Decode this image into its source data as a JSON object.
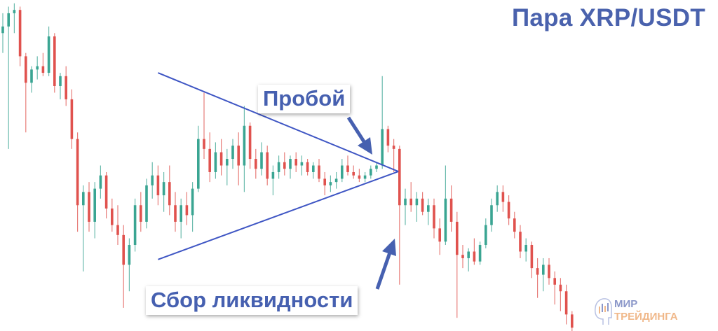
{
  "title": "Пара XRP/USDT",
  "annotations": {
    "breakout": "Пробой",
    "liquidity": "Сбор ликвидности"
  },
  "logo": {
    "line1": "МИР",
    "line2": "ТРЕЙДИНГА"
  },
  "colors": {
    "up": "#3aa592",
    "down": "#e0524e",
    "accent": "#4660b0",
    "trendline": "#3f56c4"
  },
  "chart_data": {
    "type": "candlestick",
    "title": "Пара XRP/USDT",
    "xlabel": "",
    "ylabel": "",
    "axes_visible": false,
    "grid": false,
    "ylim": [
      0,
      100
    ],
    "candle_fields": [
      "open",
      "high",
      "low",
      "close"
    ],
    "candles": [
      [
        90,
        96,
        84,
        92
      ],
      [
        92,
        98,
        55,
        96
      ],
      [
        96,
        99,
        90,
        97
      ],
      [
        97,
        98,
        80,
        83
      ],
      [
        83,
        84,
        60,
        75
      ],
      [
        75,
        80,
        72,
        79
      ],
      [
        79,
        83,
        76,
        80
      ],
      [
        80,
        84,
        77,
        78
      ],
      [
        78,
        92,
        77,
        89
      ],
      [
        89,
        90,
        72,
        74
      ],
      [
        74,
        78,
        70,
        77
      ],
      [
        77,
        80,
        68,
        70
      ],
      [
        70,
        73,
        55,
        58
      ],
      [
        58,
        60,
        30,
        38
      ],
      [
        38,
        44,
        18,
        42
      ],
      [
        42,
        45,
        30,
        33
      ],
      [
        33,
        45,
        28,
        43
      ],
      [
        43,
        50,
        40,
        47
      ],
      [
        47,
        48,
        34,
        37
      ],
      [
        37,
        40,
        30,
        32
      ],
      [
        32,
        38,
        26,
        29
      ],
      [
        29,
        32,
        7,
        20
      ],
      [
        20,
        28,
        12,
        26
      ],
      [
        26,
        40,
        24,
        38
      ],
      [
        38,
        42,
        30,
        33
      ],
      [
        33,
        46,
        31,
        44
      ],
      [
        44,
        51,
        40,
        47
      ],
      [
        47,
        50,
        38,
        41
      ],
      [
        41,
        48,
        36,
        45
      ],
      [
        45,
        50,
        35,
        38
      ],
      [
        38,
        42,
        30,
        33
      ],
      [
        33,
        40,
        28,
        38
      ],
      [
        38,
        42,
        32,
        35
      ],
      [
        35,
        45,
        30,
        43
      ],
      [
        43,
        62,
        42,
        58
      ],
      [
        58,
        72,
        52,
        55
      ],
      [
        55,
        60,
        45,
        48
      ],
      [
        48,
        57,
        46,
        54
      ],
      [
        54,
        58,
        47,
        50
      ],
      [
        50,
        55,
        44,
        52
      ],
      [
        52,
        58,
        49,
        56
      ],
      [
        56,
        60,
        44,
        50
      ],
      [
        50,
        68,
        42,
        62
      ],
      [
        62,
        63,
        49,
        52
      ],
      [
        52,
        55,
        46,
        49
      ],
      [
        49,
        57,
        47,
        54
      ],
      [
        54,
        56,
        44,
        46
      ],
      [
        46,
        50,
        41,
        48
      ],
      [
        48,
        53,
        46,
        51
      ],
      [
        51,
        54,
        47,
        49
      ],
      [
        49,
        53,
        46,
        52
      ],
      [
        52,
        54,
        48,
        50
      ],
      [
        50,
        53,
        47,
        51
      ],
      [
        51,
        52,
        47,
        48
      ],
      [
        48,
        51,
        46,
        50
      ],
      [
        50,
        52,
        45,
        46
      ],
      [
        46,
        48,
        41,
        44
      ],
      [
        44,
        47,
        42,
        45
      ],
      [
        45,
        48,
        43,
        46
      ],
      [
        46,
        52,
        45,
        50
      ],
      [
        50,
        53,
        47,
        48
      ],
      [
        48,
        50,
        46,
        47
      ],
      [
        47,
        49,
        45,
        46
      ],
      [
        46,
        48,
        45,
        47
      ],
      [
        47,
        50,
        46,
        49
      ],
      [
        49,
        51,
        48,
        50
      ],
      [
        50,
        77,
        49,
        61
      ],
      [
        61,
        62,
        54,
        56
      ],
      [
        56,
        58,
        48,
        55
      ],
      [
        55,
        56,
        14,
        38
      ],
      [
        38,
        43,
        32,
        40
      ],
      [
        40,
        45,
        36,
        38
      ],
      [
        38,
        42,
        33,
        40
      ],
      [
        40,
        42,
        35,
        36
      ],
      [
        36,
        40,
        32,
        38
      ],
      [
        38,
        40,
        28,
        31
      ],
      [
        31,
        34,
        23,
        27
      ],
      [
        27,
        50,
        26,
        40
      ],
      [
        40,
        44,
        30,
        33
      ],
      [
        33,
        36,
        4,
        23
      ],
      [
        23,
        26,
        19,
        22
      ],
      [
        22,
        25,
        18,
        24
      ],
      [
        24,
        28,
        20,
        21
      ],
      [
        21,
        27,
        20,
        26
      ],
      [
        26,
        34,
        25,
        32
      ],
      [
        32,
        40,
        30,
        38
      ],
      [
        38,
        44,
        36,
        42
      ],
      [
        42,
        44,
        36,
        39
      ],
      [
        39,
        41,
        32,
        34
      ],
      [
        34,
        36,
        28,
        30
      ],
      [
        30,
        32,
        22,
        24
      ],
      [
        24,
        28,
        21,
        26
      ],
      [
        26,
        27,
        16,
        19
      ],
      [
        19,
        22,
        10,
        17
      ],
      [
        17,
        22,
        12,
        20
      ],
      [
        20,
        22,
        14,
        16
      ],
      [
        16,
        18,
        8,
        14
      ],
      [
        14,
        16,
        6,
        12
      ],
      [
        12,
        14,
        2,
        5
      ],
      [
        5,
        6,
        0,
        1
      ]
    ],
    "trendlines": [
      {
        "name": "upper",
        "from": [
          27,
          78
        ],
        "to": [
          68.8,
          48.2
        ]
      },
      {
        "name": "lower",
        "from": [
          27,
          21.6
        ],
        "to": [
          68.8,
          48.2
        ]
      }
    ]
  }
}
